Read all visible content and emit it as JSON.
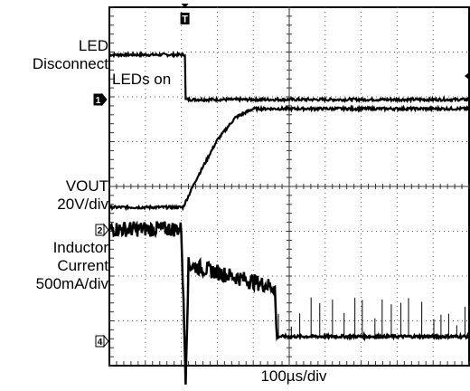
{
  "chart_data": {
    "type": "line",
    "title": "",
    "xlabel": "100µs/div",
    "ylabel": "",
    "grid": true,
    "x_range_us": [
      0,
      1000
    ],
    "channels": [
      {
        "marker": "1",
        "label_lines": [
          "LED",
          "Disconnect"
        ],
        "annotation": "LEDs on",
        "color": "#000000",
        "points": [
          [
            0,
            1
          ],
          [
            210,
            1
          ],
          [
            210,
            0
          ],
          [
            1000,
            0
          ]
        ]
      },
      {
        "marker": "2",
        "label_lines": [
          "VOUT",
          "20V/div"
        ],
        "color": "#000000",
        "points": [
          [
            0,
            0
          ],
          [
            205,
            0
          ],
          [
            240,
            0.6
          ],
          [
            300,
            1.5
          ],
          [
            350,
            2.0
          ],
          [
            400,
            2.2
          ],
          [
            1000,
            2.2
          ]
        ]
      },
      {
        "marker": "4",
        "label_lines": [
          "Inductor",
          "Current",
          "500mA/div"
        ],
        "color": "#000000",
        "points": [
          [
            0,
            2.0
          ],
          [
            200,
            2.0
          ],
          [
            212,
            -1.3
          ],
          [
            220,
            1.2
          ],
          [
            460,
            0.7
          ],
          [
            465,
            -0.4
          ],
          [
            1000,
            -0.4
          ]
        ]
      }
    ],
    "trigger_marker": "T"
  }
}
